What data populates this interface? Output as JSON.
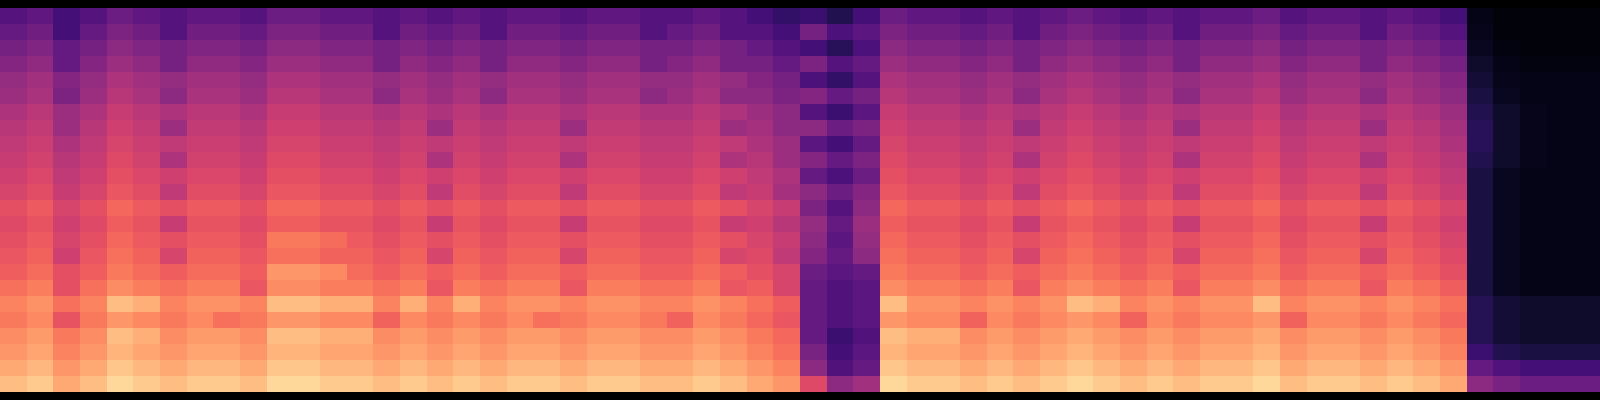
{
  "chart_data": {
    "type": "heatmap",
    "color": "magma",
    "tick_labels": false,
    "zlim": [
      0,
      100
    ],
    "z": [
      [
        86,
        89,
        82,
        86,
        92,
        89,
        86,
        89,
        89,
        86,
        92,
        92,
        89,
        89,
        86,
        89,
        86,
        89,
        86,
        89,
        89,
        86,
        89,
        89,
        86,
        86,
        89,
        86,
        82,
        78,
        60,
        40,
        45,
        92,
        89,
        89,
        86,
        89,
        86,
        89,
        92,
        89,
        86,
        89,
        86,
        89,
        89,
        92,
        86,
        89,
        89,
        86,
        89,
        86,
        82,
        40,
        35,
        32,
        32,
        32
      ],
      [
        82,
        85,
        78,
        82,
        88,
        85,
        82,
        85,
        85,
        82,
        88,
        88,
        85,
        85,
        82,
        85,
        82,
        85,
        82,
        85,
        85,
        82,
        85,
        85,
        82,
        82,
        85,
        82,
        78,
        74,
        40,
        25,
        30,
        88,
        85,
        85,
        82,
        85,
        82,
        85,
        88,
        85,
        82,
        85,
        82,
        85,
        85,
        88,
        82,
        85,
        85,
        82,
        85,
        82,
        78,
        30,
        25,
        22,
        22,
        22
      ],
      [
        78,
        81,
        74,
        78,
        84,
        81,
        78,
        81,
        81,
        78,
        84,
        84,
        81,
        81,
        78,
        81,
        78,
        81,
        78,
        81,
        81,
        78,
        81,
        81,
        78,
        78,
        81,
        78,
        74,
        70,
        35,
        22,
        28,
        84,
        81,
        81,
        78,
        81,
        78,
        81,
        84,
        81,
        78,
        81,
        78,
        81,
        81,
        84,
        78,
        81,
        81,
        78,
        81,
        78,
        74,
        20,
        14,
        12,
        12,
        12
      ],
      [
        76,
        79,
        72,
        76,
        86,
        83,
        76,
        79,
        79,
        76,
        86,
        86,
        83,
        83,
        76,
        79,
        76,
        79,
        76,
        79,
        79,
        76,
        79,
        79,
        76,
        76,
        79,
        76,
        72,
        68,
        30,
        20,
        25,
        86,
        83,
        83,
        76,
        79,
        76,
        79,
        82,
        79,
        76,
        79,
        76,
        79,
        79,
        82,
        76,
        79,
        79,
        76,
        79,
        76,
        72,
        15,
        10,
        8,
        8,
        8
      ],
      [
        72,
        75,
        63,
        72,
        78,
        75,
        72,
        75,
        70,
        72,
        78,
        78,
        75,
        75,
        67,
        75,
        72,
        75,
        72,
        75,
        70,
        72,
        75,
        75,
        72,
        67,
        75,
        72,
        68,
        64,
        30,
        25,
        28,
        78,
        75,
        75,
        67,
        75,
        72,
        75,
        78,
        75,
        67,
        75,
        72,
        75,
        75,
        78,
        67,
        75,
        75,
        72,
        75,
        72,
        68,
        15,
        10,
        8,
        8,
        8
      ],
      [
        74,
        77,
        70,
        74,
        86,
        83,
        74,
        77,
        77,
        74,
        86,
        86,
        83,
        83,
        74,
        83,
        74,
        83,
        74,
        77,
        77,
        74,
        77,
        77,
        74,
        74,
        77,
        74,
        70,
        66,
        30,
        25,
        28,
        86,
        77,
        77,
        74,
        77,
        74,
        77,
        86,
        83,
        74,
        77,
        74,
        77,
        77,
        86,
        74,
        77,
        77,
        74,
        77,
        74,
        70,
        15,
        10,
        8,
        8,
        8
      ],
      [
        70,
        73,
        62,
        70,
        76,
        73,
        70,
        73,
        73,
        64,
        76,
        76,
        73,
        73,
        70,
        73,
        64,
        73,
        70,
        73,
        73,
        64,
        73,
        73,
        70,
        70,
        73,
        64,
        66,
        58,
        30,
        25,
        28,
        76,
        73,
        73,
        70,
        73,
        64,
        73,
        76,
        73,
        70,
        73,
        64,
        73,
        73,
        76,
        70,
        73,
        73,
        64,
        73,
        70,
        66,
        12,
        6,
        4,
        4,
        4
      ],
      [
        66,
        69,
        62,
        66,
        72,
        69,
        66,
        69,
        69,
        66,
        78,
        78,
        75,
        69,
        66,
        69,
        66,
        69,
        66,
        69,
        69,
        66,
        69,
        69,
        66,
        66,
        69,
        66,
        62,
        58,
        32,
        28,
        30,
        72,
        69,
        69,
        66,
        69,
        66,
        69,
        72,
        69,
        66,
        69,
        66,
        69,
        69,
        72,
        66,
        69,
        69,
        66,
        69,
        66,
        62,
        12,
        6,
        4,
        4,
        4
      ],
      [
        64,
        67,
        56,
        64,
        70,
        67,
        58,
        67,
        67,
        64,
        70,
        70,
        67,
        67,
        64,
        67,
        58,
        67,
        64,
        67,
        67,
        58,
        67,
        67,
        64,
        64,
        67,
        58,
        60,
        52,
        38,
        30,
        40,
        70,
        67,
        67,
        64,
        67,
        58,
        67,
        70,
        67,
        64,
        67,
        58,
        67,
        67,
        70,
        64,
        67,
        67,
        58,
        67,
        64,
        60,
        12,
        6,
        4,
        4,
        4
      ],
      [
        62,
        65,
        58,
        62,
        68,
        65,
        62,
        65,
        65,
        62,
        72,
        72,
        69,
        65,
        62,
        65,
        62,
        65,
        62,
        65,
        65,
        62,
        65,
        65,
        62,
        62,
        65,
        62,
        58,
        54,
        40,
        28,
        42,
        68,
        65,
        65,
        62,
        65,
        62,
        65,
        68,
        65,
        62,
        65,
        62,
        65,
        65,
        68,
        62,
        65,
        65,
        62,
        65,
        62,
        58,
        12,
        6,
        4,
        4,
        4
      ],
      [
        60,
        63,
        56,
        60,
        66,
        63,
        54,
        63,
        63,
        60,
        66,
        66,
        63,
        63,
        60,
        63,
        54,
        63,
        60,
        63,
        63,
        54,
        63,
        63,
        60,
        60,
        63,
        54,
        56,
        50,
        42,
        30,
        44,
        66,
        63,
        63,
        60,
        63,
        54,
        63,
        66,
        63,
        60,
        63,
        54,
        63,
        63,
        66,
        60,
        63,
        63,
        54,
        63,
        60,
        56,
        12,
        6,
        4,
        4,
        4
      ],
      [
        62,
        65,
        58,
        62,
        68,
        65,
        62,
        65,
        65,
        62,
        68,
        68,
        65,
        65,
        62,
        65,
        62,
        65,
        62,
        65,
        65,
        62,
        65,
        65,
        62,
        62,
        65,
        62,
        58,
        54,
        36,
        26,
        40,
        68,
        65,
        65,
        62,
        65,
        62,
        65,
        68,
        65,
        62,
        65,
        62,
        65,
        65,
        68,
        62,
        65,
        65,
        62,
        65,
        62,
        58,
        12,
        6,
        4,
        4,
        4
      ],
      [
        58,
        61,
        54,
        58,
        64,
        61,
        52,
        61,
        61,
        58,
        64,
        64,
        61,
        61,
        58,
        61,
        52,
        61,
        58,
        61,
        61,
        52,
        61,
        61,
        58,
        58,
        61,
        52,
        54,
        46,
        40,
        32,
        38,
        64,
        61,
        61,
        58,
        61,
        52,
        61,
        64,
        61,
        58,
        61,
        52,
        61,
        61,
        64,
        58,
        61,
        61,
        52,
        61,
        58,
        54,
        12,
        6,
        4,
        4,
        4
      ],
      [
        56,
        59,
        52,
        56,
        62,
        59,
        56,
        59,
        59,
        56,
        62,
        62,
        59,
        59,
        56,
        59,
        56,
        59,
        56,
        59,
        59,
        56,
        59,
        59,
        56,
        56,
        59,
        56,
        52,
        48,
        30,
        24,
        32,
        62,
        59,
        59,
        56,
        59,
        56,
        59,
        62,
        59,
        56,
        59,
        56,
        59,
        59,
        62,
        56,
        59,
        59,
        56,
        59,
        56,
        52,
        12,
        6,
        4,
        4,
        4
      ],
      [
        54,
        57,
        50,
        54,
        60,
        57,
        48,
        57,
        57,
        54,
        60,
        60,
        57,
        57,
        54,
        57,
        48,
        57,
        54,
        57,
        57,
        48,
        57,
        57,
        54,
        54,
        57,
        48,
        50,
        44,
        38,
        30,
        36,
        60,
        57,
        57,
        54,
        57,
        48,
        57,
        60,
        57,
        54,
        57,
        48,
        57,
        57,
        60,
        54,
        57,
        57,
        48,
        57,
        54,
        50,
        14,
        8,
        5,
        4,
        4
      ],
      [
        52,
        55,
        48,
        52,
        58,
        55,
        52,
        55,
        55,
        52,
        58,
        58,
        55,
        55,
        52,
        55,
        52,
        55,
        52,
        55,
        55,
        52,
        55,
        55,
        52,
        52,
        55,
        52,
        48,
        44,
        28,
        22,
        30,
        58,
        55,
        55,
        52,
        55,
        52,
        55,
        58,
        55,
        52,
        55,
        52,
        55,
        55,
        58,
        52,
        55,
        55,
        52,
        55,
        52,
        48,
        16,
        8,
        5,
        4,
        4
      ],
      [
        50,
        53,
        44,
        50,
        56,
        53,
        44,
        53,
        53,
        50,
        56,
        56,
        53,
        53,
        50,
        53,
        44,
        53,
        50,
        53,
        53,
        44,
        53,
        53,
        50,
        50,
        53,
        44,
        46,
        40,
        40,
        32,
        36,
        56,
        53,
        53,
        50,
        53,
        44,
        53,
        56,
        53,
        50,
        53,
        44,
        53,
        53,
        56,
        50,
        53,
        53,
        44,
        53,
        50,
        46,
        16,
        8,
        5,
        4,
        4
      ],
      [
        48,
        51,
        44,
        48,
        54,
        51,
        48,
        51,
        51,
        48,
        54,
        54,
        51,
        51,
        48,
        51,
        48,
        51,
        48,
        51,
        51,
        48,
        51,
        51,
        48,
        48,
        51,
        48,
        44,
        40,
        26,
        20,
        28,
        54,
        51,
        51,
        48,
        51,
        48,
        51,
        54,
        51,
        48,
        51,
        48,
        51,
        51,
        54,
        48,
        51,
        51,
        48,
        51,
        48,
        44,
        14,
        8,
        5,
        4,
        4
      ],
      [
        44,
        47,
        36,
        44,
        50,
        47,
        40,
        47,
        47,
        44,
        50,
        50,
        47,
        47,
        40,
        47,
        44,
        47,
        40,
        47,
        47,
        44,
        47,
        47,
        40,
        44,
        47,
        40,
        40,
        36,
        38,
        30,
        34,
        50,
        47,
        47,
        44,
        47,
        40,
        47,
        50,
        47,
        44,
        47,
        40,
        47,
        47,
        50,
        44,
        47,
        47,
        40,
        47,
        44,
        40,
        12,
        6,
        4,
        4,
        4
      ],
      [
        42,
        45,
        38,
        42,
        48,
        45,
        42,
        45,
        45,
        42,
        48,
        48,
        45,
        45,
        42,
        45,
        42,
        45,
        42,
        45,
        45,
        42,
        45,
        45,
        42,
        42,
        45,
        42,
        38,
        34,
        24,
        18,
        26,
        48,
        45,
        45,
        42,
        45,
        42,
        45,
        48,
        45,
        42,
        45,
        42,
        45,
        45,
        48,
        42,
        45,
        45,
        42,
        45,
        42,
        38,
        10,
        5,
        4,
        4,
        4
      ],
      [
        38,
        41,
        30,
        38,
        44,
        41,
        34,
        41,
        41,
        38,
        44,
        44,
        41,
        41,
        34,
        41,
        38,
        41,
        34,
        41,
        41,
        38,
        41,
        41,
        34,
        38,
        41,
        34,
        34,
        30,
        36,
        26,
        30,
        44,
        41,
        41,
        38,
        41,
        34,
        41,
        44,
        41,
        38,
        41,
        34,
        41,
        41,
        44,
        38,
        41,
        41,
        34,
        41,
        38,
        34,
        8,
        4,
        3,
        3,
        3
      ],
      [
        34,
        37,
        30,
        34,
        40,
        37,
        34,
        37,
        37,
        34,
        40,
        40,
        37,
        37,
        34,
        37,
        34,
        37,
        34,
        37,
        37,
        34,
        37,
        37,
        34,
        34,
        37,
        34,
        30,
        26,
        22,
        16,
        24,
        40,
        37,
        37,
        34,
        37,
        34,
        37,
        40,
        37,
        34,
        37,
        34,
        37,
        37,
        40,
        34,
        37,
        37,
        34,
        37,
        34,
        30,
        6,
        3,
        2,
        2,
        2
      ],
      [
        30,
        33,
        22,
        30,
        36,
        33,
        26,
        33,
        33,
        30,
        36,
        36,
        33,
        33,
        26,
        33,
        30,
        33,
        26,
        33,
        33,
        30,
        33,
        33,
        26,
        30,
        33,
        26,
        26,
        22,
        34,
        24,
        28,
        36,
        33,
        33,
        30,
        33,
        26,
        33,
        36,
        33,
        30,
        33,
        26,
        33,
        33,
        36,
        30,
        33,
        33,
        26,
        33,
        30,
        26,
        5,
        2,
        2,
        2,
        2
      ],
      [
        26,
        29,
        22,
        26,
        32,
        29,
        26,
        29,
        29,
        26,
        32,
        32,
        29,
        29,
        26,
        29,
        26,
        29,
        26,
        29,
        29,
        26,
        29,
        29,
        26,
        26,
        29,
        26,
        22,
        18,
        20,
        14,
        22,
        32,
        29,
        29,
        26,
        29,
        26,
        29,
        32,
        29,
        26,
        29,
        26,
        29,
        29,
        32,
        26,
        29,
        29,
        26,
        29,
        26,
        22,
        4,
        2,
        2,
        2,
        2
      ]
    ]
  }
}
